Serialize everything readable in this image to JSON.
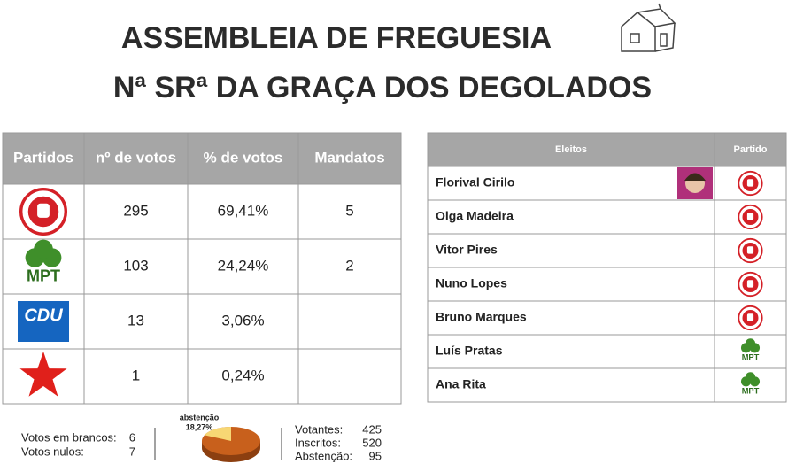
{
  "header": {
    "title_lines": [
      "ASSEMBLEIA DE FREGUESIA",
      "Nª SRª DA GRAÇA DOS DEGOLADOS"
    ]
  },
  "results": {
    "columns": [
      "Partidos",
      "nº de votos",
      "% de votos",
      "Mandatos"
    ],
    "rows": [
      {
        "votos": 295,
        "percent": "69,41%",
        "mandatos": 5
      },
      {
        "logo_text": "MPT",
        "votos": 103,
        "percent": "24,24%",
        "mandatos": 2
      },
      {
        "logo_text": "CDU",
        "votos": 13,
        "percent": "3,06%"
      },
      {
        "votos": 1,
        "percent": "0,24%"
      }
    ]
  },
  "eleitos": {
    "columns": [
      "Eleitos",
      "Partido"
    ],
    "rows": [
      {
        "name": "Florival Cirilo"
      },
      {
        "name": "Olga Madeira"
      },
      {
        "name": "Vitor Pires"
      },
      {
        "name": "Nuno Lopes"
      },
      {
        "name": "Bruno Marques"
      },
      {
        "name": "Luís Pratas",
        "logo_text": "MPT"
      },
      {
        "name": "Ana Rita",
        "logo_text": "MPT"
      }
    ]
  },
  "footer": {
    "left": [
      {
        "label": "Votos em brancos:",
        "value": 6
      },
      {
        "label": "Votos nulos:",
        "value": 7
      }
    ],
    "pie": {
      "label": "abstenção",
      "value": 18.27,
      "value_label": "18,27%"
    },
    "right": [
      {
        "label": "Votantes:",
        "value": 425
      },
      {
        "label": "Inscritos:",
        "value": 520
      },
      {
        "label": "Abstenção:",
        "value": 95
      }
    ]
  }
}
